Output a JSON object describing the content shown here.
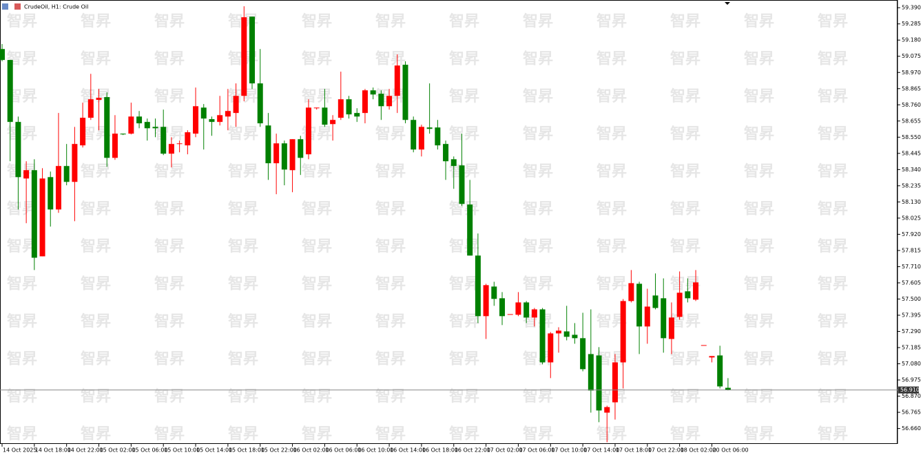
{
  "chart_data": {
    "type": "candlestick",
    "title": "CrudeOil, H1:  Crude Oil",
    "watermark": "智昇",
    "up_color": "#ff0000",
    "down_color": "#008000",
    "categories": [
      "14 Oct 2025",
      null,
      null,
      null,
      "14 Oct 18:00",
      null,
      null,
      null,
      "14 Oct 22:00",
      null,
      null,
      null,
      "15 Oct 02:00",
      null,
      null,
      null,
      "15 Oct 06:00",
      null,
      null,
      null,
      "15 Oct 10:00",
      null,
      null,
      null,
      "15 Oct 14:00",
      null,
      null,
      null,
      "15 Oct 18:00",
      null,
      null,
      null,
      "15 Oct 22:00",
      null,
      null,
      null,
      "16 Oct 02:00",
      null,
      null,
      null,
      "16 Oct 06:00",
      null,
      null,
      null,
      "16 Oct 10:00",
      null,
      null,
      null,
      "16 Oct 14:00",
      null,
      null,
      null,
      "16 Oct 18:00",
      null,
      null,
      null,
      "16 Oct 22:00",
      null,
      null,
      null,
      "17 Oct 02:00",
      null,
      null,
      null,
      "17 Oct 06:00",
      null,
      null,
      null,
      "17 Oct 10:00",
      null,
      null,
      null,
      "17 Oct 14:00",
      null,
      null,
      null,
      "17 Oct 18:00",
      null,
      null,
      null,
      "17 Oct 22:00",
      null,
      null,
      null,
      "18 Oct 02:00",
      null,
      null,
      null,
      "20 Oct 06:00",
      null,
      null
    ],
    "open": [
      59.122,
      59.051,
      58.649,
      58.282,
      58.336,
      57.777,
      58.291,
      58.081,
      58.363,
      58.26,
      58.497,
      58.676,
      58.792,
      58.81,
      58.416,
      58.573,
      58.573,
      58.684,
      58.649,
      58.617,
      58.617,
      58.443,
      58.506,
      58.497,
      58.573,
      58.742,
      58.667,
      58.649,
      58.684,
      58.707,
      58.818,
      59.332,
      58.899,
      58.626,
      58.381,
      58.51,
      58.336,
      58.537,
      58.439,
      58.738,
      58.742,
      58.635,
      58.676,
      58.796,
      58.707,
      58.707,
      58.854,
      58.832,
      58.751,
      58.818,
      59.02,
      58.662,
      58.47,
      58.613,
      58.613,
      58.506,
      58.407,
      58.367,
      58.113,
      57.782,
      57.389,
      57.581,
      57.505,
      57.402,
      57.398,
      57.478,
      57.38,
      57.433,
      57.089,
      57.277,
      57.29,
      57.268,
      57.246,
      57.143,
      57.134,
      56.763,
      56.83,
      57.089,
      57.487,
      57.599,
      57.322,
      57.523,
      57.505,
      57.241,
      57.384,
      57.55,
      57.496,
      57.201,
      57.121,
      57.134,
      56.924
    ],
    "high": [
      59.154,
      59.051,
      58.684,
      58.394,
      58.407,
      58.349,
      58.327,
      58.707,
      58.506,
      58.617,
      58.774,
      58.961,
      58.863,
      58.841,
      58.693,
      58.573,
      58.774,
      58.72,
      58.671,
      58.671,
      58.729,
      58.55,
      58.528,
      58.595,
      58.872,
      58.765,
      58.684,
      58.818,
      58.863,
      58.899,
      59.399,
      59.332,
      59.122,
      58.707,
      58.573,
      58.528,
      58.537,
      58.559,
      58.796,
      58.742,
      58.863,
      58.693,
      58.975,
      58.818,
      58.738,
      58.863,
      58.872,
      58.854,
      58.863,
      59.087,
      59.042,
      58.684,
      58.631,
      58.899,
      58.662,
      58.528,
      58.425,
      58.573,
      58.273,
      57.925,
      57.599,
      57.612,
      57.545,
      57.402,
      57.545,
      57.487,
      57.442,
      57.442,
      57.286,
      57.317,
      57.456,
      57.344,
      57.411,
      57.433,
      57.188,
      56.808,
      57.143,
      57.5,
      57.688,
      57.612,
      57.567,
      57.666,
      57.634,
      57.478,
      57.679,
      57.634,
      57.688,
      57.201,
      57.13,
      57.197,
      56.987
    ],
    "low": [
      59.042,
      58.394,
      58.081,
      57.992,
      57.688,
      57.777,
      57.97,
      58.059,
      58.238,
      58.005,
      58.483,
      58.662,
      58.595,
      58.358,
      58.403,
      58.564,
      58.568,
      58.608,
      58.528,
      58.55,
      58.434,
      58.354,
      58.452,
      58.439,
      58.55,
      58.47,
      58.559,
      58.626,
      58.595,
      58.617,
      58.783,
      58.863,
      58.617,
      58.273,
      58.18,
      58.238,
      58.193,
      58.305,
      58.407,
      58.729,
      58.617,
      58.528,
      58.662,
      58.671,
      58.649,
      58.64,
      58.796,
      58.662,
      58.729,
      58.707,
      58.64,
      58.452,
      58.425,
      58.573,
      58.47,
      58.273,
      58.215,
      58.104,
      57.782,
      57.344,
      57.241,
      57.456,
      57.331,
      57.402,
      57.389,
      57.344,
      57.322,
      57.076,
      56.987,
      57.152,
      57.232,
      57.21,
      57.031,
      56.763,
      56.701,
      56.571,
      56.718,
      56.92,
      57.478,
      57.143,
      57.21,
      57.433,
      57.152,
      57.143,
      57.366,
      57.478,
      57.487,
      57.201,
      57.089,
      56.92,
      56.907
    ],
    "close": [
      59.051,
      58.649,
      58.291,
      58.336,
      57.768,
      58.282,
      58.081,
      58.363,
      58.26,
      58.506,
      58.676,
      58.796,
      58.805,
      58.416,
      58.573,
      58.568,
      58.684,
      58.64,
      58.608,
      58.608,
      58.443,
      58.506,
      58.51,
      58.582,
      58.751,
      58.671,
      58.649,
      58.693,
      58.72,
      58.818,
      59.328,
      58.899,
      58.64,
      58.381,
      58.51,
      58.34,
      58.537,
      58.416,
      58.742,
      58.742,
      58.631,
      58.662,
      58.796,
      58.698,
      58.684,
      58.854,
      58.827,
      58.751,
      58.818,
      59.015,
      58.662,
      58.47,
      58.617,
      58.604,
      58.497,
      58.394,
      58.363,
      58.117,
      57.782,
      57.389,
      57.59,
      57.501,
      57.389,
      57.402,
      57.478,
      57.38,
      57.433,
      57.089,
      57.277,
      57.295,
      57.255,
      57.246,
      57.045,
      56.906,
      56.777,
      56.799,
      57.089,
      57.487,
      57.603,
      57.322,
      57.451,
      57.442,
      57.246,
      57.38,
      57.541,
      57.505,
      57.608,
      57.201,
      57.13,
      56.933,
      56.91
    ],
    "current_price": {
      "value": 56.91,
      "label": "56.910"
    },
    "ylim": [
      56.56,
      59.44
    ],
    "yticks": [
      {
        "value": 59.39,
        "label": "59.390"
      },
      59.285,
      {
        "value": 59.18,
        "label": "59.180"
      },
      59.075,
      {
        "value": 58.97,
        "label": "58.970"
      },
      58.865,
      {
        "value": 58.76,
        "label": "58.760"
      },
      58.655,
      {
        "value": 58.55,
        "label": "58.550"
      },
      58.445,
      {
        "value": 58.34,
        "label": "58.340"
      },
      58.235,
      {
        "value": 58.13,
        "label": "58.130"
      },
      58.025,
      {
        "value": 57.92,
        "label": "57.920"
      },
      57.815,
      {
        "value": 57.71,
        "label": "57.710"
      },
      57.605,
      {
        "value": 57.5,
        "label": "57.500"
      },
      57.395,
      {
        "value": 57.29,
        "label": "57.290"
      },
      57.185,
      {
        "value": 57.08,
        "label": "57.080"
      },
      56.975,
      {
        "value": 56.87,
        "label": "56.870"
      },
      56.765,
      {
        "value": 56.66,
        "label": "56.660"
      }
    ]
  }
}
